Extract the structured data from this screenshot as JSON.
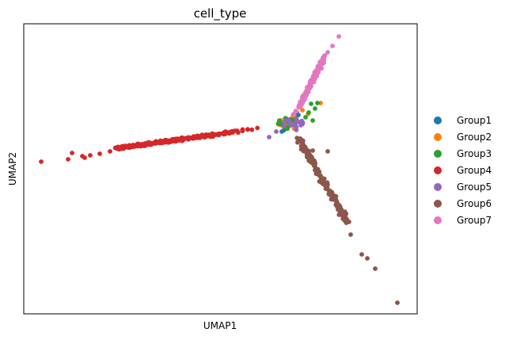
{
  "chart_data": {
    "type": "scatter",
    "title": "cell_type",
    "xlabel": "UMAP1",
    "ylabel": "UMAP2",
    "xlim": [
      0,
      100
    ],
    "ylim": [
      0,
      100
    ],
    "grid": false,
    "ticks": false,
    "legend_position": "right",
    "series": [
      {
        "name": "Group1",
        "color": "#1f77b4"
      },
      {
        "name": "Group2",
        "color": "#ff7f0e"
      },
      {
        "name": "Group3",
        "color": "#2ca02c"
      },
      {
        "name": "Group4",
        "color": "#d62728"
      },
      {
        "name": "Group5",
        "color": "#9467bd"
      },
      {
        "name": "Group6",
        "color": "#8c564b"
      },
      {
        "name": "Group7",
        "color": "#e377c2"
      }
    ]
  }
}
